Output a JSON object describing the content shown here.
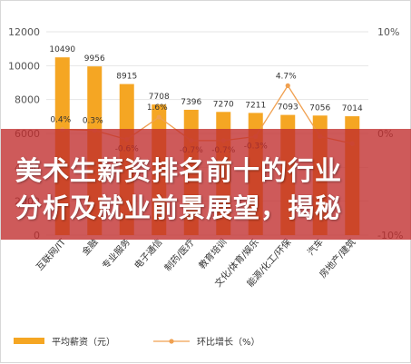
{
  "overlay": {
    "line1": "美术生薪资排名前十的行业",
    "line2": "分析及就业前景展望，揭秘"
  },
  "colors": {
    "bar": "#f5a623",
    "line": "#f0a050",
    "overlay": "#c02c2c"
  },
  "chart_data": {
    "type": "bar",
    "categories": [
      "互联网/IT",
      "金融",
      "专业服务",
      "电子通信",
      "制药/医疗",
      "教育培训",
      "文化/体育/娱乐",
      "能源/化工/环保",
      "汽车",
      "房地产/建筑"
    ],
    "series": [
      {
        "name": "平均薪资（元）",
        "type": "bar",
        "axis": "left",
        "values": [
          10490,
          9956,
          8915,
          7708,
          7396,
          7270,
          7211,
          7093,
          7056,
          7014
        ],
        "labels": [
          "10490",
          "9956",
          "8915",
          "7708",
          "7396",
          "7270",
          "7211",
          "7093",
          "7056",
          "7014"
        ]
      },
      {
        "name": "环比增长（%）",
        "type": "line",
        "axis": "right",
        "values": [
          0.4,
          0.3,
          -0.6,
          1.6,
          -0.7,
          -0.7,
          -0.3,
          4.7,
          -0.3,
          -1.0
        ],
        "labels": [
          "0.4%",
          "0.3%",
          "-0.6%",
          "1.6%",
          "-0.7%",
          "-0.7%",
          "-0.3%",
          "4.7%",
          "",
          ""
        ]
      }
    ],
    "y_left": {
      "min": 0,
      "max": 12000,
      "ticks": [
        "0",
        "2000",
        "4000",
        "6000",
        "8000",
        "10000",
        "12000"
      ]
    },
    "y_right": {
      "min": -10,
      "max": 10,
      "ticks": [
        "-10%",
        "0%",
        "10%"
      ]
    },
    "grid": true,
    "legend": "bottom"
  }
}
